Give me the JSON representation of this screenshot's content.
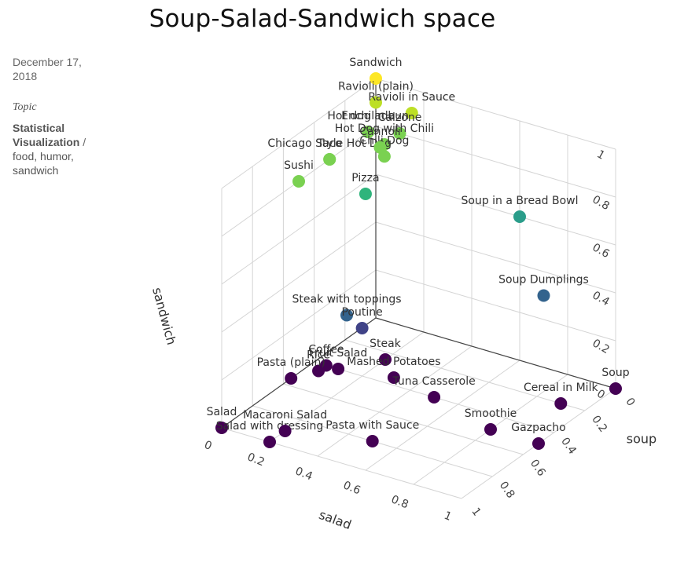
{
  "page": {
    "title": "Soup-Salad-Sandwich space",
    "date": "December 17, 2018",
    "topic_label": "Topic",
    "topic_main": "Statistical Visualization",
    "topic_sep": " /",
    "topic_tags": "food, humor, sandwich"
  },
  "chart_data": {
    "type": "scatter3d",
    "title": "Soup-Salad-Sandwich space",
    "axes": {
      "x": {
        "label": "salad",
        "range": [
          0,
          1
        ],
        "ticks": [
          "0",
          "0.2",
          "0.4",
          "0.6",
          "0.8",
          "1"
        ]
      },
      "y": {
        "label": "soup",
        "range": [
          0,
          1
        ],
        "ticks": [
          "0",
          "0.2",
          "0.4",
          "0.6",
          "0.8",
          "1"
        ]
      },
      "z": {
        "label": "sandwich",
        "range": [
          0,
          1
        ],
        "ticks": [
          "0",
          "0.2",
          "0.4",
          "0.6",
          "0.8",
          "1"
        ]
      }
    },
    "grid": true,
    "colorscale": "viridis (color = sandwich)",
    "points": [
      {
        "label": "Sandwich",
        "salad": 0,
        "soup": 0,
        "sandwich": 1,
        "color": "#fde725"
      },
      {
        "label": "Ravioli (plain)",
        "salad": 0,
        "soup": 0,
        "sandwich": 0.9,
        "color": "#bddf26"
      },
      {
        "label": "Ravioli in Sauce",
        "salad": 0,
        "soup": 0.15,
        "sandwich": 0.9,
        "color": "#bddf26"
      },
      {
        "label": "Hot dog in bun",
        "salad": 0.05,
        "soup": 0,
        "sandwich": 0.8,
        "color": "#7ad151"
      },
      {
        "label": "Calzone",
        "salad": 0,
        "soup": 0.1,
        "sandwich": 0.8,
        "color": "#7ad151"
      },
      {
        "label": "Enchilada",
        "salad": 0.05,
        "soup": 0,
        "sandwich": 0.8,
        "color": "#7ad151"
      },
      {
        "label": "Hot Dog with Chili",
        "salad": 0.1,
        "soup": 0.1,
        "sandwich": 0.8,
        "color": "#7ad151"
      },
      {
        "label": "Chicago Style Hot Dog",
        "salad": 0.3,
        "soup": 0,
        "sandwich": 0.8,
        "color": "#7ad151"
      },
      {
        "label": "Taco",
        "salad": 0.3,
        "soup": 0,
        "sandwich": 0.8,
        "color": "#7ad151"
      },
      {
        "label": "Sushi",
        "salad": 0.5,
        "soup": 0,
        "sandwich": 0.8,
        "color": "#7ad151"
      },
      {
        "label": "Chili Dog",
        "salad": 0.1,
        "soup": 0.1,
        "sandwich": 0.75,
        "color": "#7ad151"
      },
      {
        "label": "Cannoli",
        "salad": 0.05,
        "soup": 0.05,
        "sandwich": 0.75,
        "color": "#7ad151"
      },
      {
        "label": "Pizza",
        "salad": 0.3,
        "soup": 0.15,
        "sandwich": 0.7,
        "color": "#2fb47c"
      },
      {
        "label": "Soup in a Bread Bowl",
        "salad": 0,
        "soup": 0.6,
        "sandwich": 0.6,
        "color": "#2a9d8a"
      },
      {
        "label": "Steak with toppings",
        "salad": 0.5,
        "soup": 0.2,
        "sandwich": 0.3,
        "color": "#33638d"
      },
      {
        "label": "Soup Dumplings",
        "salad": 0,
        "soup": 0.7,
        "sandwich": 0.3,
        "color": "#33638d"
      },
      {
        "label": "Poutine",
        "salad": 0.4,
        "soup": 0.2,
        "sandwich": 0.2,
        "color": "#404387"
      },
      {
        "label": "Steak",
        "salad": 0.25,
        "soup": 0.2,
        "sandwich": 0,
        "color": "#440154"
      },
      {
        "label": "Fruit Salad",
        "salad": 0.4,
        "soup": 0.1,
        "sandwich": 0,
        "color": "#440154"
      },
      {
        "label": "Coffee",
        "salad": 0.4,
        "soup": 0.05,
        "sandwich": 0,
        "color": "#440154"
      },
      {
        "label": "Rice",
        "salad": 0.45,
        "soup": 0.05,
        "sandwich": 0,
        "color": "#440154"
      },
      {
        "label": "Pasta (plain)",
        "salad": 0.55,
        "soup": 0,
        "sandwich": 0,
        "color": "#440154"
      },
      {
        "label": "Salad",
        "salad": 1,
        "soup": 0,
        "sandwich": 0,
        "color": "#440154"
      },
      {
        "label": "Mashed Potatoes",
        "salad": 0.35,
        "soup": 0.3,
        "sandwich": 0,
        "color": "#440154"
      },
      {
        "label": "Tuna Casserole",
        "salad": 0.4,
        "soup": 0.5,
        "sandwich": 0,
        "color": "#440154"
      },
      {
        "label": "Salad with dressing",
        "salad": 1,
        "soup": 0.2,
        "sandwich": 0,
        "color": "#440154"
      },
      {
        "label": "Macaroni Salad",
        "salad": 0.9,
        "soup": 0.2,
        "sandwich": 0,
        "color": "#440154"
      },
      {
        "label": "Pasta with Sauce",
        "salad": 0.8,
        "soup": 0.5,
        "sandwich": 0,
        "color": "#440154"
      },
      {
        "label": "Smoothie",
        "salad": 0.5,
        "soup": 0.8,
        "sandwich": 0,
        "color": "#440154"
      },
      {
        "label": "Soup",
        "salad": 0,
        "soup": 1,
        "sandwich": 0,
        "color": "#440154"
      },
      {
        "label": "Cereal in Milk",
        "salad": 0.2,
        "soup": 0.9,
        "sandwich": 0,
        "color": "#440154"
      },
      {
        "label": "Gazpacho",
        "salad": 0.5,
        "soup": 1,
        "sandwich": 0,
        "color": "#440154"
      }
    ]
  }
}
